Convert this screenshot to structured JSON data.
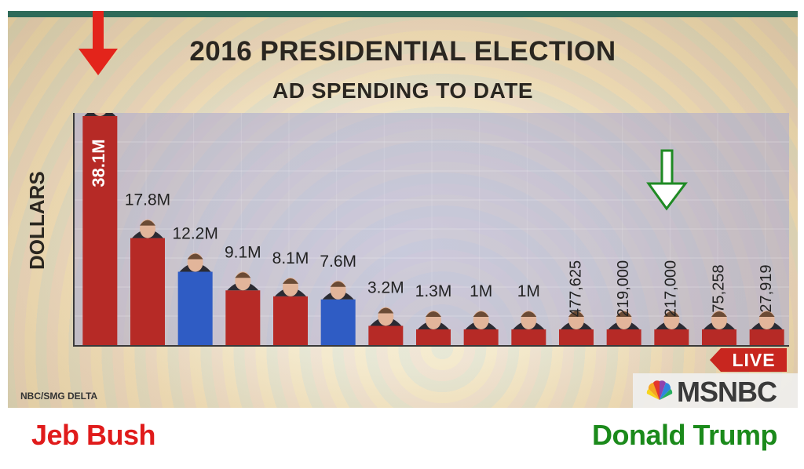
{
  "header": {
    "title": "2016 PRESIDENTIAL ELECTION",
    "subtitle": "AD SPENDING TO DATE"
  },
  "footer": {
    "source": "NBC/SMG DELTA",
    "live_label": "LIVE",
    "network": "MSNBC"
  },
  "captions": {
    "left": "Jeb Bush",
    "right": "Donald Trump"
  },
  "colors": {
    "republican": "#b62a26",
    "democrat": "#2f5cc4",
    "arrow_left": "#e3241b",
    "arrow_right": "#1f8a24"
  },
  "chart_data": {
    "type": "bar",
    "title": "2016 PRESIDENTIAL ELECTION",
    "subtitle": "AD SPENDING TO DATE",
    "ylabel": "DOLLARS",
    "xlabel": "",
    "ylim": [
      0,
      38100000
    ],
    "grid": true,
    "series": [
      {
        "values": [
          38100000,
          17800000,
          12200000,
          9100000,
          8100000,
          7600000,
          3200000,
          1300000,
          1000000,
          1000000,
          477625,
          219000,
          217000,
          75258,
          27919
        ],
        "labels": [
          "38.1M",
          "17.8M",
          "12.2M",
          "9.1M",
          "8.1M",
          "7.6M",
          "3.2M",
          "1.3M",
          "1M",
          "1M",
          "477,625",
          "219,000",
          "217,000",
          "75,258",
          "27,919"
        ],
        "party": [
          "R",
          "R",
          "D",
          "R",
          "R",
          "D",
          "R",
          "R",
          "R",
          "R",
          "R",
          "R",
          "R",
          "R",
          "R"
        ]
      }
    ],
    "annotations": [
      "Jeb Bush",
      "Donald Trump"
    ]
  }
}
